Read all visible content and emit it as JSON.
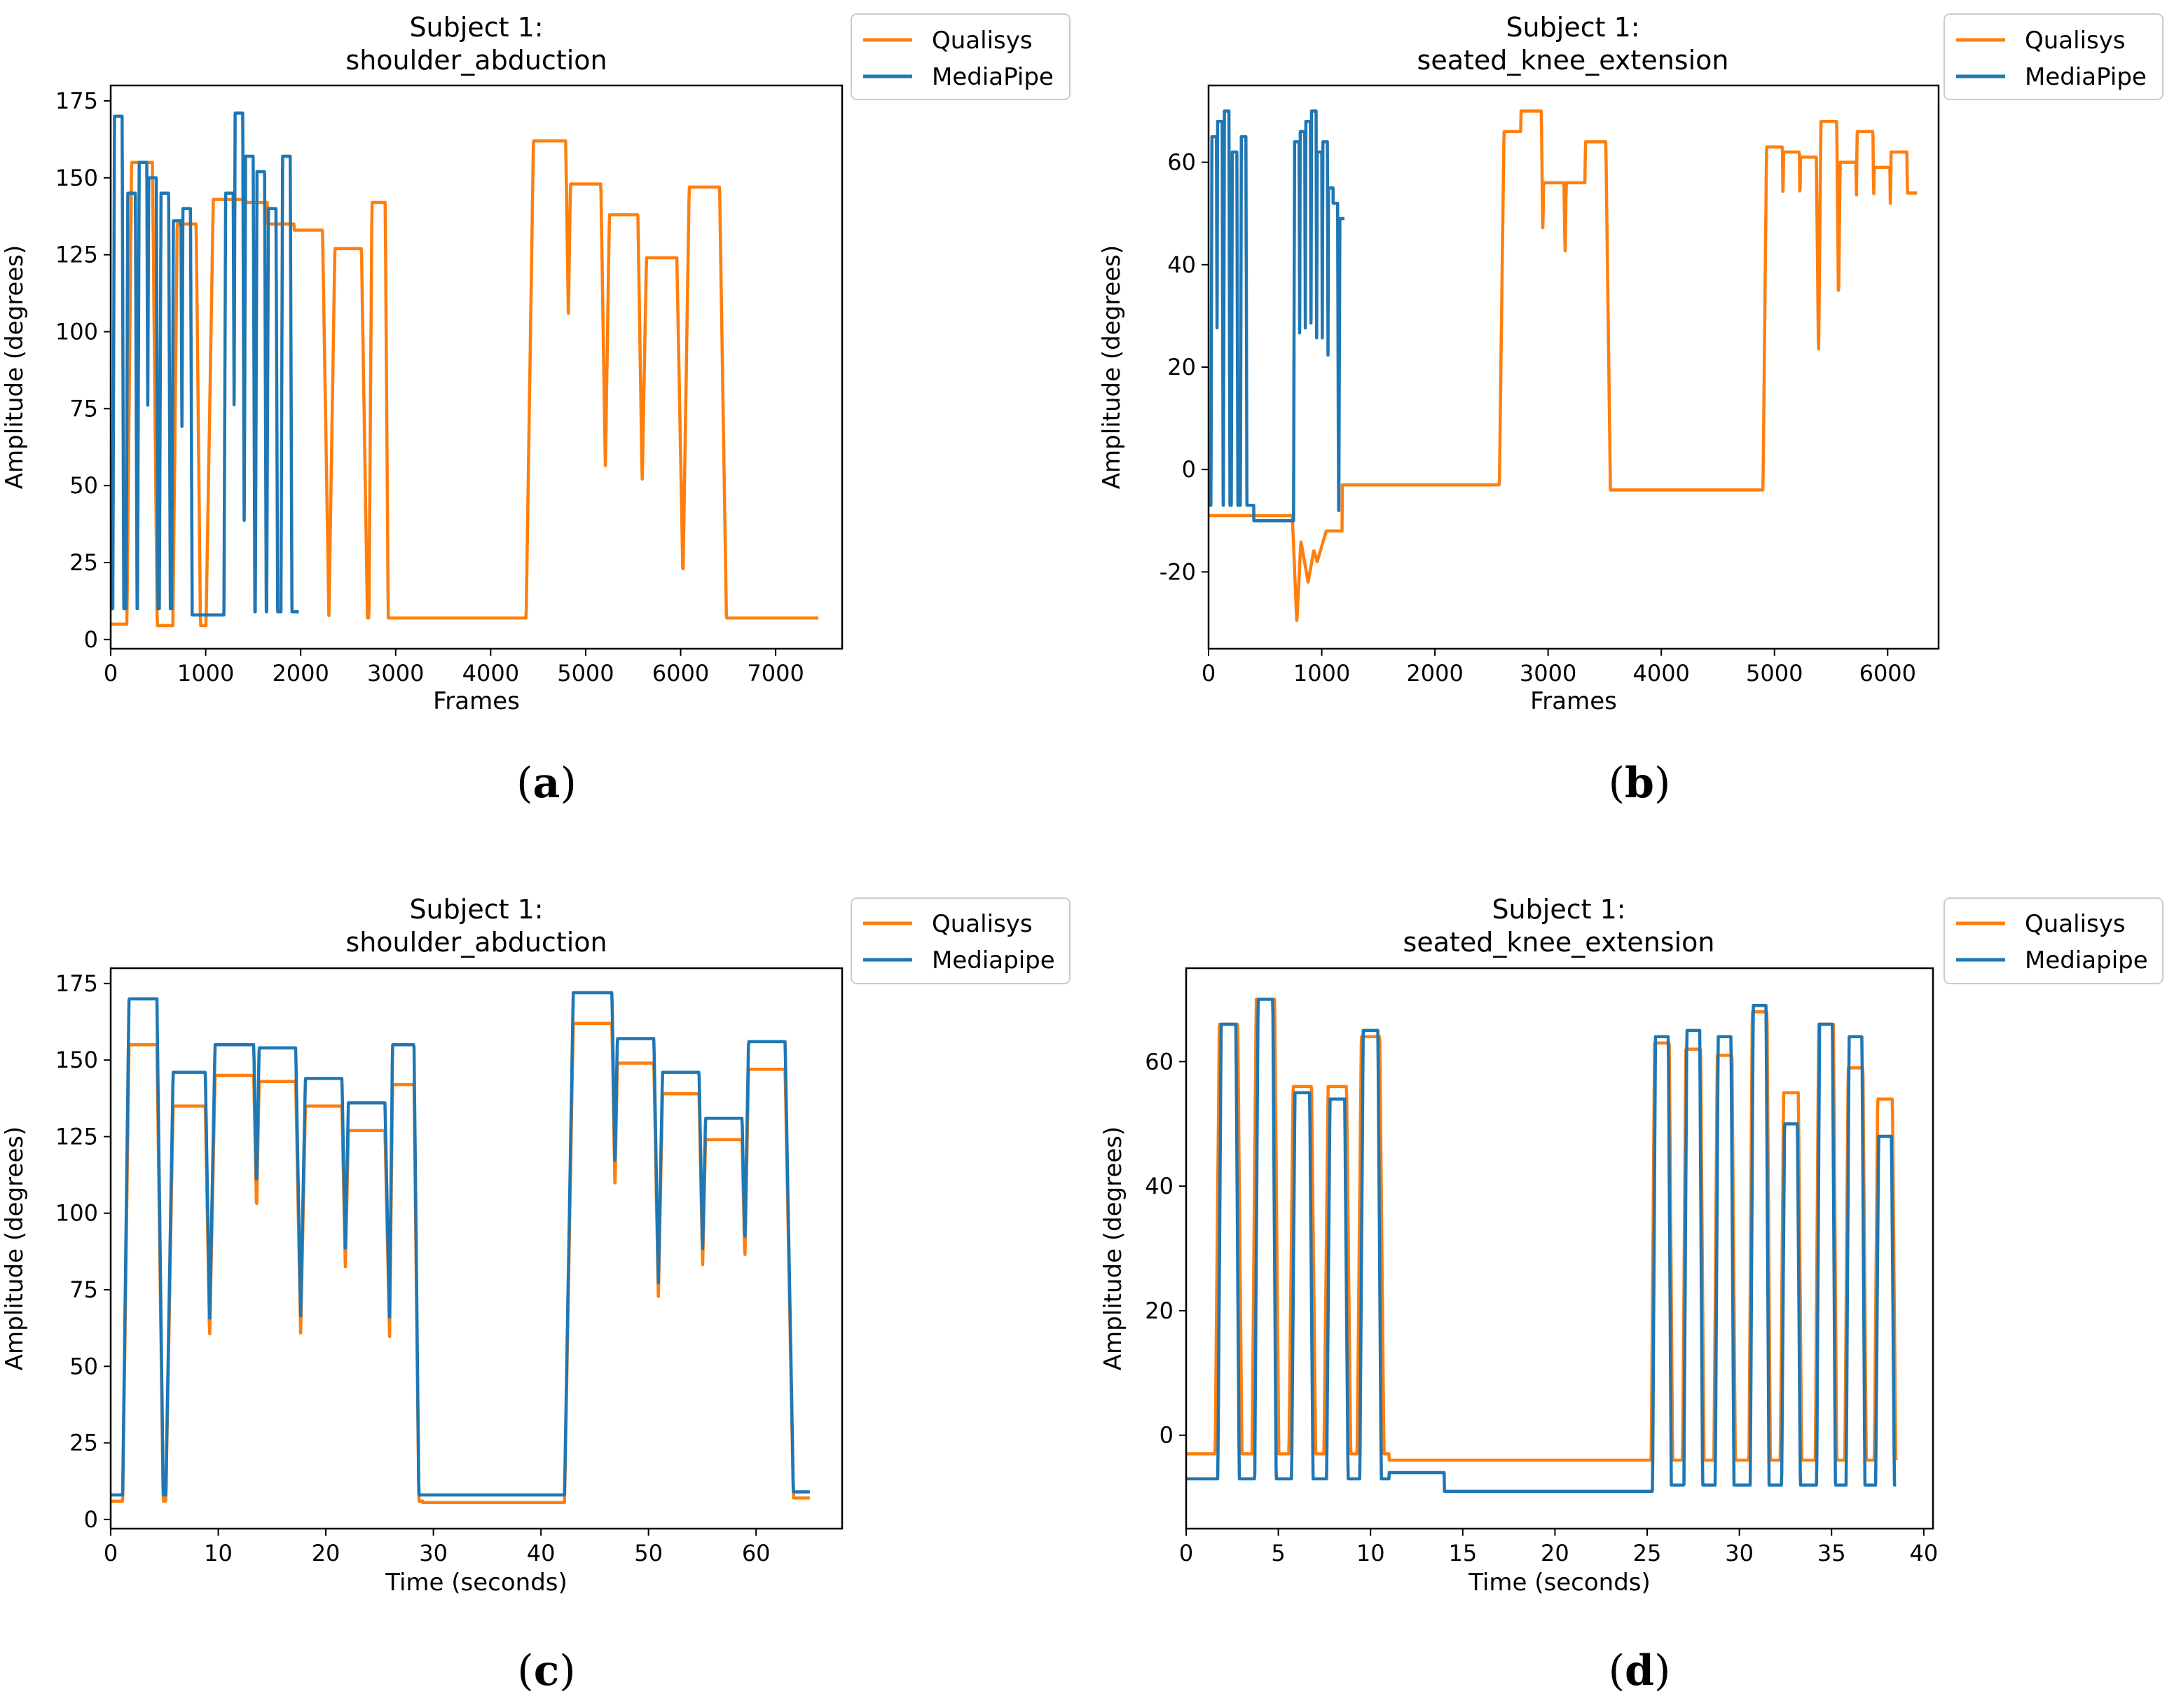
{
  "colors": {
    "qualisys": "#ff7f0e",
    "mediapipe": "#1f77b4"
  },
  "chart_data": [
    {
      "id": "a",
      "type": "line",
      "caption": "a",
      "title": [
        "Subject 1:",
        "shoulder_abduction"
      ],
      "xlabel": "Frames",
      "ylabel": "Amplitude (degrees)",
      "xlim": [
        0,
        7700
      ],
      "ylim": [
        -3,
        180
      ],
      "xticks": [
        0,
        1000,
        2000,
        3000,
        4000,
        5000,
        6000,
        7000
      ],
      "yticks": [
        0,
        25,
        50,
        75,
        100,
        125,
        150,
        175
      ],
      "legend": [
        "Qualisys",
        "MediaPipe"
      ],
      "legend_position": "outside-top-right",
      "series": [
        {
          "name": "Qualisys",
          "color": "#ff7f0e",
          "baseline": 5.5,
          "x_end": 7450,
          "segments": [
            [
              0,
              5
            ],
            [
              230,
              4.5
            ],
            [
              1150,
              7
            ]
          ],
          "peaks": [
            [
              330,
              155,
              110
            ],
            [
              800,
              135,
              100
            ],
            [
              1250,
              143,
              170
            ],
            [
              1500,
              142,
              150
            ],
            [
              1780,
              135,
              150
            ],
            [
              2080,
              133,
              150
            ],
            [
              2500,
              127,
              140
            ],
            [
              2820,
              142,
              70
            ],
            [
              4620,
              162,
              170
            ],
            [
              5000,
              148,
              160
            ],
            [
              5400,
              138,
              150
            ],
            [
              5800,
              124,
              160
            ],
            [
              6250,
              147,
              160
            ]
          ]
        },
        {
          "name": "MediaPipe",
          "color": "#1f77b4",
          "baseline": 9,
          "x_end": 1980,
          "segments": [
            [
              0,
              10
            ],
            [
              850,
              8
            ],
            [
              1250,
              9
            ]
          ],
          "peaks": [
            [
              80,
              170,
              40
            ],
            [
              220,
              145,
              40
            ],
            [
              340,
              155,
              40
            ],
            [
              440,
              150,
              40
            ],
            [
              570,
              145,
              40
            ],
            [
              700,
              136,
              40
            ],
            [
              800,
              140,
              40
            ],
            [
              1250,
              145,
              40
            ],
            [
              1350,
              171,
              40
            ],
            [
              1460,
              157,
              40
            ],
            [
              1580,
              152,
              40
            ],
            [
              1700,
              140,
              40
            ],
            [
              1850,
              157,
              40
            ]
          ]
        }
      ]
    },
    {
      "id": "b",
      "type": "line",
      "caption": "b",
      "title": [
        "Subject 1:",
        "seated_knee_extension"
      ],
      "xlabel": "Frames",
      "ylabel": "Amplitude (degrees)",
      "xlim": [
        0,
        6450
      ],
      "ylim": [
        -35,
        75
      ],
      "xticks": [
        0,
        1000,
        2000,
        3000,
        4000,
        5000,
        6000
      ],
      "yticks": [
        -20,
        0,
        20,
        40,
        60
      ],
      "legend": [
        "Qualisys",
        "MediaPipe"
      ],
      "legend_position": "outside-top-right",
      "series": [
        {
          "name": "Qualisys",
          "color": "#ff7f0e",
          "baseline": -3.5,
          "x_end": 6260,
          "segments": [
            [
              0,
              -9
            ],
            [
              780,
              -12
            ],
            [
              1180,
              -3
            ],
            [
              2650,
              -3
            ],
            [
              3450,
              -4
            ],
            [
              4950,
              -4
            ]
          ],
          "peaks": [
            [
              2700,
              66,
              90
            ],
            [
              2850,
              70,
              90
            ],
            [
              3050,
              56,
              90
            ],
            [
              3250,
              56,
              90
            ],
            [
              3420,
              64,
              90
            ],
            [
              5000,
              63,
              70
            ],
            [
              5150,
              62,
              70
            ],
            [
              5300,
              61,
              70
            ],
            [
              5480,
              68,
              70
            ],
            [
              5650,
              60,
              70
            ],
            [
              5800,
              66,
              70
            ],
            [
              5950,
              59,
              70
            ],
            [
              6100,
              62,
              70
            ],
            [
              6240,
              54,
              70
            ]
          ],
          "dips": [
            [
              780,
              -30,
              40
            ],
            [
              880,
              -22,
              80
            ],
            [
              960,
              -18,
              80
            ]
          ]
        },
        {
          "name": "MediaPipe",
          "color": "#1f77b4",
          "baseline": -8,
          "x_end": 1200,
          "segments": [
            [
              0,
              -7
            ],
            [
              400,
              -10
            ],
            [
              780,
              -8
            ]
          ],
          "peaks": [
            [
              50,
              65,
              20
            ],
            [
              100,
              68,
              20
            ],
            [
              160,
              70,
              20
            ],
            [
              230,
              62,
              20
            ],
            [
              310,
              65,
              20
            ],
            [
              780,
              64,
              20
            ],
            [
              830,
              66,
              20
            ],
            [
              880,
              68,
              20
            ],
            [
              930,
              70,
              20
            ],
            [
              980,
              62,
              20
            ],
            [
              1030,
              64,
              20
            ],
            [
              1080,
              55,
              20
            ],
            [
              1120,
              52,
              20
            ],
            [
              1180,
              49,
              20
            ]
          ]
        }
      ]
    },
    {
      "id": "c",
      "type": "line",
      "caption": "c",
      "title": [
        "Subject 1:",
        "shoulder_abduction"
      ],
      "xlabel": "Time (seconds)",
      "ylabel": "Amplitude (degrees)",
      "xlim": [
        0,
        68
      ],
      "ylim": [
        -3,
        180
      ],
      "xticks": [
        0,
        10,
        20,
        30,
        40,
        50,
        60
      ],
      "yticks": [
        0,
        25,
        50,
        75,
        100,
        125,
        150,
        175
      ],
      "legend": [
        "Qualisys",
        "Mediapipe"
      ],
      "legend_position": "outside-top-right",
      "series": [
        {
          "name": "Qualisys",
          "color": "#ff7f0e",
          "baseline": 7,
          "x_end": 65,
          "segments": [
            [
              0,
              6
            ],
            [
              29,
              5.5
            ],
            [
              43,
              7
            ]
          ],
          "peaks": [
            [
              3,
              155,
              1.3
            ],
            [
              7.3,
              135,
              1.5
            ],
            [
              11.5,
              145,
              1.8
            ],
            [
              15.5,
              143,
              1.7
            ],
            [
              19.8,
              135,
              1.7
            ],
            [
              23.8,
              127,
              1.7
            ],
            [
              27.2,
              142,
              1
            ],
            [
              44.8,
              162,
              1.8
            ],
            [
              48.8,
              149,
              1.7
            ],
            [
              53,
              139,
              1.7
            ],
            [
              57,
              124,
              1.7
            ],
            [
              61,
              147,
              1.7
            ]
          ]
        },
        {
          "name": "Mediapipe",
          "color": "#1f77b4",
          "baseline": 8.5,
          "x_end": 65,
          "segments": [
            [
              0,
              8
            ],
            [
              29,
              8
            ],
            [
              43,
              9
            ]
          ],
          "peaks": [
            [
              3,
              170,
              1.3
            ],
            [
              7.3,
              146,
              1.5
            ],
            [
              11.5,
              155,
              1.8
            ],
            [
              15.5,
              154,
              1.7
            ],
            [
              19.8,
              144,
              1.7
            ],
            [
              23.8,
              136,
              1.7
            ],
            [
              27.2,
              155,
              1
            ],
            [
              44.8,
              172,
              1.8
            ],
            [
              48.8,
              157,
              1.7
            ],
            [
              53,
              146,
              1.7
            ],
            [
              57,
              131,
              1.7
            ],
            [
              61,
              156,
              1.7
            ]
          ]
        }
      ]
    },
    {
      "id": "d",
      "type": "line",
      "caption": "d",
      "title": [
        "Subject 1:",
        "seated_knee_extension"
      ],
      "xlabel": "Time (seconds)",
      "ylabel": "Amplitude (degrees)",
      "xlim": [
        0,
        40.5
      ],
      "ylim": [
        -15,
        75
      ],
      "xticks": [
        0,
        5,
        10,
        15,
        20,
        25,
        30,
        35,
        40
      ],
      "yticks": [
        0,
        20,
        40,
        60
      ],
      "legend": [
        "Qualisys",
        "Mediapipe"
      ],
      "legend_position": "outside-top-right",
      "series": [
        {
          "name": "Qualisys",
          "color": "#ff7f0e",
          "baseline": -3.5,
          "x_end": 38.5,
          "segments": [
            [
              0,
              -3
            ],
            [
              11,
              -4
            ],
            [
              25.5,
              -4
            ]
          ],
          "peaks": [
            [
              2.3,
              66,
              0.5
            ],
            [
              4.3,
              70,
              0.5
            ],
            [
              6.3,
              56,
              0.5
            ],
            [
              8.2,
              56,
              0.5
            ],
            [
              10,
              64,
              0.5
            ],
            [
              25.8,
              63,
              0.4
            ],
            [
              27.5,
              62,
              0.4
            ],
            [
              29.2,
              61,
              0.4
            ],
            [
              31.1,
              68,
              0.4
            ],
            [
              32.8,
              55,
              0.4
            ],
            [
              34.7,
              66,
              0.4
            ],
            [
              36.3,
              59,
              0.4
            ],
            [
              37.9,
              54,
              0.4
            ]
          ]
        },
        {
          "name": "Mediapipe",
          "color": "#1f77b4",
          "baseline": -8,
          "x_end": 38.5,
          "segments": [
            [
              0,
              -7
            ],
            [
              11,
              -6
            ],
            [
              14,
              -9
            ],
            [
              25.5,
              -8
            ]
          ],
          "peaks": [
            [
              2.3,
              66,
              0.4
            ],
            [
              4.3,
              70,
              0.4
            ],
            [
              6.3,
              55,
              0.4
            ],
            [
              8.2,
              54,
              0.4
            ],
            [
              10,
              65,
              0.4
            ],
            [
              25.8,
              64,
              0.35
            ],
            [
              27.5,
              65,
              0.35
            ],
            [
              29.2,
              64,
              0.35
            ],
            [
              31.1,
              69,
              0.35
            ],
            [
              32.8,
              50,
              0.35
            ],
            [
              34.7,
              66,
              0.35
            ],
            [
              36.3,
              64,
              0.35
            ],
            [
              37.9,
              48,
              0.35
            ]
          ]
        }
      ]
    }
  ]
}
